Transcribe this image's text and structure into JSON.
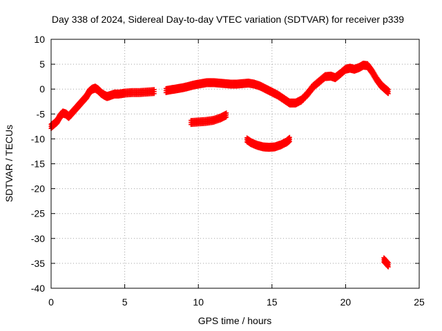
{
  "chart_data": {
    "type": "scatter",
    "title": "Day 338 of 2024, Sidereal Day-to-day VTEC variation (SDTVAR) for receiver p339",
    "xlabel": "GPS time / hours",
    "ylabel": "SDTVAR / TECUs",
    "xlim": [
      0,
      25
    ],
    "ylim": [
      -40,
      10
    ],
    "x_ticks": [
      0,
      5,
      10,
      15,
      20,
      25
    ],
    "x_tick_labels": [
      "0",
      "5",
      "10",
      "15",
      "20",
      "25"
    ],
    "y_ticks": [
      10,
      5,
      0,
      -5,
      -10,
      -15,
      -20,
      -25,
      -30,
      -35,
      -40
    ],
    "y_tick_labels": [
      "10",
      "5",
      "0",
      "-5",
      "-10",
      "-15",
      "-20",
      "-25",
      "-30",
      "-35",
      "-40"
    ],
    "grid": true,
    "legend": "none",
    "series_color": "#ff0000",
    "series": [
      {
        "name": "main trace",
        "points": [
          [
            0.0,
            -7.5
          ],
          [
            0.2,
            -7.0
          ],
          [
            0.4,
            -6.5
          ],
          [
            0.6,
            -5.5
          ],
          [
            0.8,
            -4.8
          ],
          [
            1.0,
            -5.0
          ],
          [
            1.2,
            -5.5
          ],
          [
            1.5,
            -4.5
          ],
          [
            1.8,
            -3.5
          ],
          [
            2.1,
            -2.5
          ],
          [
            2.4,
            -1.5
          ],
          [
            2.6,
            -0.5
          ],
          [
            2.8,
            0.0
          ],
          [
            3.0,
            0.2
          ],
          [
            3.2,
            -0.2
          ],
          [
            3.4,
            -0.8
          ],
          [
            3.6,
            -1.2
          ],
          [
            3.8,
            -1.5
          ],
          [
            4.0,
            -1.3
          ],
          [
            4.3,
            -1.0
          ],
          [
            4.6,
            -1.0
          ],
          [
            5.0,
            -0.8
          ],
          [
            5.5,
            -0.7
          ],
          [
            6.0,
            -0.7
          ],
          [
            6.5,
            -0.6
          ],
          [
            7.0,
            -0.5
          ],
          [
            7.8,
            -0.3
          ],
          [
            8.2,
            -0.1
          ],
          [
            8.6,
            0.1
          ],
          [
            9.0,
            0.3
          ],
          [
            9.4,
            0.6
          ],
          [
            9.8,
            0.9
          ],
          [
            10.2,
            1.1
          ],
          [
            10.6,
            1.3
          ],
          [
            11.0,
            1.3
          ],
          [
            11.4,
            1.2
          ],
          [
            11.8,
            1.1
          ],
          [
            12.2,
            1.0
          ],
          [
            12.6,
            1.0
          ],
          [
            13.0,
            1.1
          ],
          [
            13.4,
            1.2
          ],
          [
            13.8,
            1.0
          ],
          [
            14.2,
            0.6
          ],
          [
            14.6,
            0.0
          ],
          [
            15.0,
            -0.6
          ],
          [
            15.4,
            -1.2
          ],
          [
            15.8,
            -2.0
          ],
          [
            16.2,
            -2.8
          ],
          [
            16.6,
            -2.8
          ],
          [
            17.0,
            -2.2
          ],
          [
            17.4,
            -1.0
          ],
          [
            17.8,
            0.5
          ],
          [
            18.2,
            1.5
          ],
          [
            18.6,
            2.5
          ],
          [
            19.0,
            2.6
          ],
          [
            19.3,
            2.3
          ],
          [
            19.6,
            3.0
          ],
          [
            20.0,
            4.0
          ],
          [
            20.3,
            4.2
          ],
          [
            20.6,
            4.0
          ],
          [
            20.9,
            4.3
          ],
          [
            21.2,
            4.8
          ],
          [
            21.5,
            4.7
          ],
          [
            21.8,
            3.5
          ],
          [
            22.1,
            2.0
          ],
          [
            22.4,
            0.8
          ],
          [
            22.7,
            0.0
          ],
          [
            22.9,
            -0.5
          ]
        ]
      },
      {
        "name": "fragment 9.5-12h",
        "points": [
          [
            9.5,
            -6.7
          ],
          [
            10.0,
            -6.6
          ],
          [
            10.5,
            -6.5
          ],
          [
            11.0,
            -6.3
          ],
          [
            11.5,
            -5.8
          ],
          [
            11.9,
            -5.2
          ]
        ]
      },
      {
        "name": "fragment 13.3-16.2h",
        "points": [
          [
            13.3,
            -10.2
          ],
          [
            13.6,
            -10.8
          ],
          [
            14.0,
            -11.3
          ],
          [
            14.4,
            -11.6
          ],
          [
            14.8,
            -11.7
          ],
          [
            15.2,
            -11.6
          ],
          [
            15.6,
            -11.2
          ],
          [
            16.0,
            -10.6
          ],
          [
            16.2,
            -10.1
          ]
        ]
      },
      {
        "name": "fragment ~22.7h",
        "points": [
          [
            22.6,
            -34.3
          ],
          [
            22.75,
            -34.8
          ],
          [
            22.9,
            -35.3
          ]
        ]
      }
    ]
  }
}
